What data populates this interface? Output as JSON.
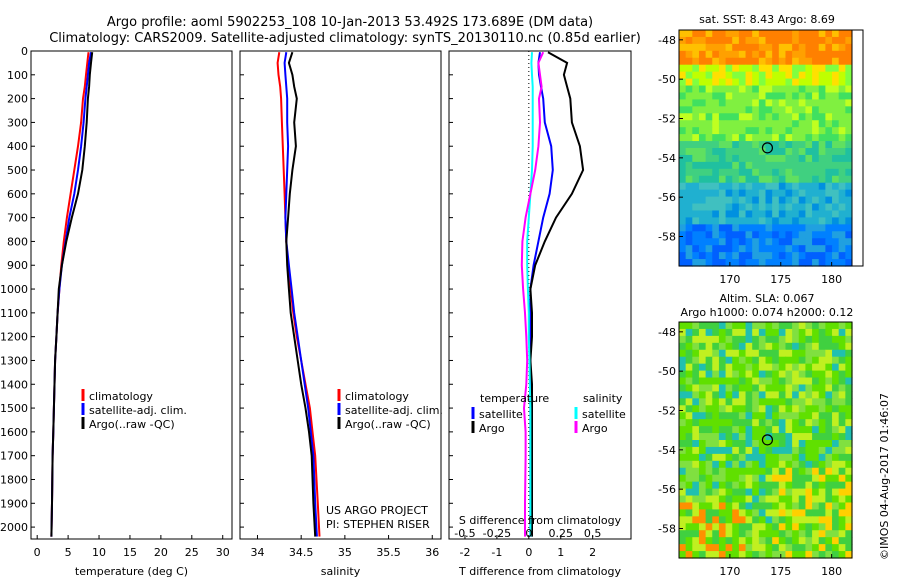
{
  "header": {
    "title_line1": "Argo profile: aoml 5902253_108 10-Jan-2013 53.492S 173.689E (DM data)",
    "title_line2": "Climatology: CARS2009. Satellite-adjusted climatology: synTS_20130110.nc (0.85d earlier)"
  },
  "colors": {
    "climatology": "#ff0000",
    "satellite": "#0000ff",
    "argo": "#000000",
    "salinity_satellite": "#00ffff",
    "salinity_argo": "#ff00ff"
  },
  "chart_data": [
    {
      "id": "temperature",
      "type": "line",
      "xlabel": "temperature (deg C)",
      "xlim": [
        -1,
        31.5
      ],
      "ylim": [
        2050,
        0
      ],
      "xticks": [
        0,
        5,
        10,
        15,
        20,
        25,
        30
      ],
      "yticks": [
        0,
        100,
        200,
        300,
        400,
        500,
        600,
        700,
        800,
        900,
        1000,
        1100,
        1200,
        1300,
        1400,
        1500,
        1600,
        1700,
        1800,
        1900,
        2000
      ],
      "legend": [
        "climatology",
        "satellite-adj. clim.",
        "Argo(..raw -QC)"
      ],
      "series": [
        {
          "name": "climatology",
          "color": "#ff0000",
          "x": [
            8.3,
            8.1,
            7.9,
            7.7,
            7.4,
            7.1,
            6.6,
            6.0,
            5.4,
            4.8,
            4.3,
            3.9,
            3.6,
            3.3,
            3.1,
            2.9,
            2.8,
            2.7,
            2.6,
            2.5,
            2.4,
            2.3
          ],
          "y": [
            5,
            50,
            100,
            150,
            200,
            300,
            400,
            500,
            600,
            700,
            800,
            900,
            1000,
            1100,
            1200,
            1300,
            1400,
            1500,
            1600,
            1700,
            1900,
            2040
          ]
        },
        {
          "name": "satellite-adj. clim.",
          "color": "#0000ff",
          "x": [
            8.7,
            8.4,
            8.2,
            8.0,
            7.8,
            7.5,
            7.1,
            6.6,
            6.0,
            5.2,
            4.6,
            4.0,
            3.6,
            3.3,
            3.1,
            2.9,
            2.8,
            2.7,
            2.6,
            2.5,
            2.4,
            2.3
          ],
          "y": [
            5,
            50,
            100,
            150,
            200,
            300,
            400,
            500,
            600,
            700,
            800,
            900,
            1000,
            1100,
            1200,
            1300,
            1400,
            1500,
            1600,
            1700,
            1900,
            2040
          ]
        },
        {
          "name": "Argo(..raw -QC)",
          "color": "#000000",
          "x": [
            8.9,
            8.7,
            8.5,
            8.4,
            8.2,
            8.0,
            7.7,
            7.3,
            6.6,
            5.6,
            4.7,
            4.0,
            3.5,
            3.3,
            3.1,
            2.9,
            2.8,
            2.7,
            2.6,
            2.5,
            2.4,
            2.3
          ],
          "y": [
            5,
            50,
            100,
            150,
            200,
            300,
            400,
            500,
            600,
            700,
            800,
            900,
            1000,
            1100,
            1200,
            1300,
            1400,
            1500,
            1600,
            1700,
            1900,
            2040
          ]
        }
      ]
    },
    {
      "id": "salinity",
      "type": "line",
      "xlabel": "salinity",
      "xlim": [
        33.8,
        36.1
      ],
      "ylim": [
        2050,
        0
      ],
      "xticks": [
        34,
        34.5,
        35,
        35.5,
        36
      ],
      "xtick_labels": [
        "34",
        "34.5",
        "35",
        "35.5",
        "36"
      ],
      "legend": [
        "climatology",
        "satellite-adj. clim.",
        "Argo(..raw -QC)"
      ],
      "annotation": [
        "US ARGO PROJECT",
        "PI: STEPHEN RISER"
      ],
      "series": [
        {
          "name": "climatology",
          "color": "#ff0000",
          "x": [
            34.25,
            34.23,
            34.24,
            34.26,
            34.27,
            34.28,
            34.29,
            34.3,
            34.31,
            34.32,
            34.33,
            34.35,
            34.38,
            34.41,
            34.45,
            34.5,
            34.55,
            34.6,
            34.63,
            34.66,
            34.69,
            34.71
          ],
          "y": [
            5,
            50,
            100,
            150,
            200,
            300,
            400,
            500,
            600,
            700,
            800,
            900,
            1000,
            1100,
            1200,
            1300,
            1400,
            1500,
            1600,
            1700,
            1900,
            2040
          ]
        },
        {
          "name": "satellite-adj. clim.",
          "color": "#0000ff",
          "x": [
            34.33,
            34.31,
            34.32,
            34.33,
            34.34,
            34.34,
            34.35,
            34.34,
            34.33,
            34.32,
            34.33,
            34.36,
            34.39,
            34.42,
            34.46,
            34.5,
            34.54,
            34.58,
            34.61,
            34.64,
            34.66,
            34.68
          ],
          "y": [
            5,
            50,
            100,
            150,
            200,
            300,
            400,
            500,
            600,
            700,
            800,
            900,
            1000,
            1100,
            1200,
            1300,
            1400,
            1500,
            1600,
            1700,
            1900,
            2040
          ]
        },
        {
          "name": "Argo(..raw -QC)",
          "color": "#000000",
          "x": [
            34.4,
            34.36,
            34.4,
            34.42,
            34.45,
            34.42,
            34.44,
            34.4,
            34.37,
            34.35,
            34.33,
            34.34,
            34.36,
            34.38,
            34.42,
            34.46,
            34.5,
            34.55,
            34.59,
            34.62,
            34.64,
            34.66
          ],
          "y": [
            5,
            50,
            100,
            150,
            200,
            300,
            400,
            500,
            600,
            700,
            800,
            900,
            1000,
            1100,
            1200,
            1300,
            1400,
            1500,
            1600,
            1700,
            1900,
            2040
          ]
        }
      ]
    },
    {
      "id": "difference",
      "type": "line",
      "xlabel": "T difference from climatology",
      "xlabel_top": "S difference from climatology",
      "xlim": [
        -2.5,
        3.2
      ],
      "ylim": [
        2050,
        0
      ],
      "xticks": [
        -2,
        -1,
        0,
        1,
        2
      ],
      "xtick_labels": [
        "-2",
        "-1",
        "0",
        "1",
        "2"
      ],
      "s_ticks": [
        -0.5,
        -0.25,
        0,
        0.25,
        0.5
      ],
      "s_tick_labels": [
        "-0.5",
        "-0.25",
        "0",
        "0.25",
        "0.5"
      ],
      "legend_titles": [
        "temperature",
        "salinity"
      ],
      "legend_temperature": [
        "satellite",
        "Argo"
      ],
      "legend_salinity": [
        "satellite",
        "Argo"
      ],
      "series": [
        {
          "name": "temperature satellite",
          "color": "#0000ff",
          "x": [
            0.35,
            0.3,
            0.32,
            0.38,
            0.45,
            0.5,
            0.7,
            0.75,
            0.65,
            0.45,
            0.3,
            0.15,
            0.05,
            0.05,
            0.05,
            0.05,
            0.05,
            0.05,
            0.05,
            0.05,
            0.05,
            0.05
          ],
          "y": [
            5,
            50,
            100,
            150,
            200,
            300,
            400,
            500,
            600,
            700,
            800,
            900,
            1000,
            1100,
            1200,
            1300,
            1400,
            1500,
            1600,
            1700,
            1900,
            2040
          ]
        },
        {
          "name": "temperature Argo",
          "color": "#000000",
          "x": [
            0.6,
            1.2,
            1.1,
            1.2,
            1.3,
            1.35,
            1.6,
            1.7,
            1.35,
            0.85,
            0.5,
            0.2,
            0.05,
            0.1,
            0.1,
            0.05,
            0.1,
            0.1,
            0.1,
            0.1,
            0.1,
            0.1
          ],
          "y": [
            5,
            50,
            100,
            150,
            200,
            300,
            400,
            500,
            600,
            700,
            800,
            900,
            1000,
            1100,
            1200,
            1300,
            1400,
            1500,
            1600,
            1700,
            1900,
            2040
          ]
        },
        {
          "name": "salinity satellite",
          "color": "#00ffff",
          "x": [
            0.1,
            0.08,
            0.1,
            0.12,
            0.12,
            0.12,
            0.12,
            0.1,
            0.05,
            0.0,
            -0.05,
            -0.05,
            -0.03,
            0.0,
            0.0,
            0.02,
            0.03,
            0.05,
            0.05,
            0.05,
            0.05,
            0.05
          ],
          "y": [
            5,
            50,
            100,
            150,
            200,
            300,
            400,
            500,
            600,
            700,
            800,
            900,
            1000,
            1100,
            1200,
            1300,
            1400,
            1500,
            1600,
            1700,
            1900,
            2040
          ]
        },
        {
          "name": "salinity Argo",
          "color": "#ff00ff",
          "x": [
            0.45,
            0.3,
            0.35,
            0.4,
            0.32,
            0.35,
            0.3,
            0.2,
            0.05,
            -0.1,
            -0.2,
            -0.22,
            -0.18,
            -0.12,
            -0.08,
            -0.05,
            -0.08,
            -0.15,
            -0.1,
            -0.1,
            -0.12,
            -0.12
          ],
          "y": [
            5,
            50,
            100,
            150,
            200,
            300,
            400,
            500,
            600,
            700,
            800,
            900,
            1000,
            1100,
            1200,
            1300,
            1400,
            1500,
            1600,
            1700,
            1900,
            2040
          ]
        }
      ]
    },
    {
      "id": "sst_map",
      "type": "heatmap",
      "title": "sat. SST: 8.43  Argo: 8.69",
      "xticks": [
        170,
        175,
        180
      ],
      "yticks": [
        -48,
        -50,
        -52,
        -54,
        -56,
        -58
      ],
      "xlim": [
        165,
        182
      ],
      "ylim": [
        -59.5,
        -47.5
      ],
      "marker": {
        "lon": 173.689,
        "lat": -53.492
      }
    },
    {
      "id": "sla_map",
      "type": "heatmap",
      "title_line1": "Altim. SLA: 0.067",
      "title_line2": "Argo h1000: 0.074 h2000: 0.12",
      "xticks": [
        170,
        175,
        180
      ],
      "yticks": [
        -48,
        -50,
        -52,
        -54,
        -56,
        -58
      ],
      "xlim": [
        165,
        182
      ],
      "ylim": [
        -59.5,
        -47.5
      ],
      "marker": {
        "lon": 173.689,
        "lat": -53.492
      }
    }
  ],
  "footer": {
    "imos_stamp": "©IMOS 04-Aug-2017 01:46:07"
  }
}
